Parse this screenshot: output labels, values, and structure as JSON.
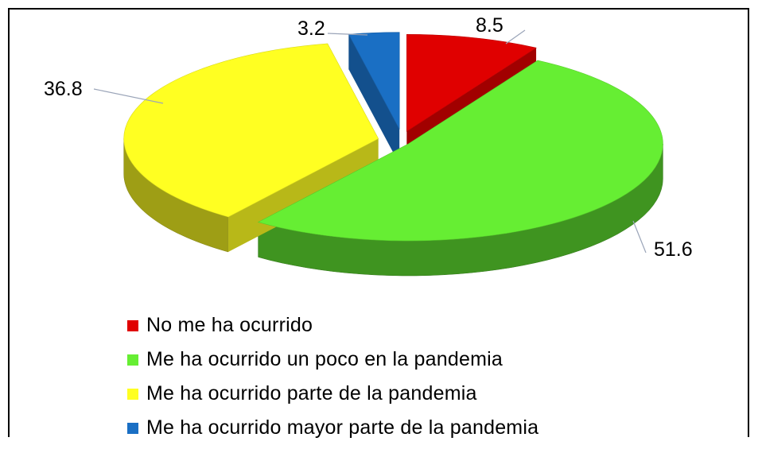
{
  "chart_data": {
    "type": "pie",
    "title": "",
    "categories": [
      "No me ha ocurrido",
      "Me ha ocurrido un poco en la pandemia",
      "Me ha ocurrido parte de la pandemia",
      "Me ha ocurrido mayor parte de la pandemia"
    ],
    "values": [
      8.5,
      51.6,
      36.8,
      3.2
    ],
    "value_labels": [
      "8.5",
      "51.6",
      "36.8",
      "3.2"
    ],
    "colors": [
      "#e00000",
      "#66ee33",
      "#ffff22",
      "#1a6fc4"
    ],
    "legend_position": "bottom-left",
    "exploded": true,
    "style": "3d"
  }
}
